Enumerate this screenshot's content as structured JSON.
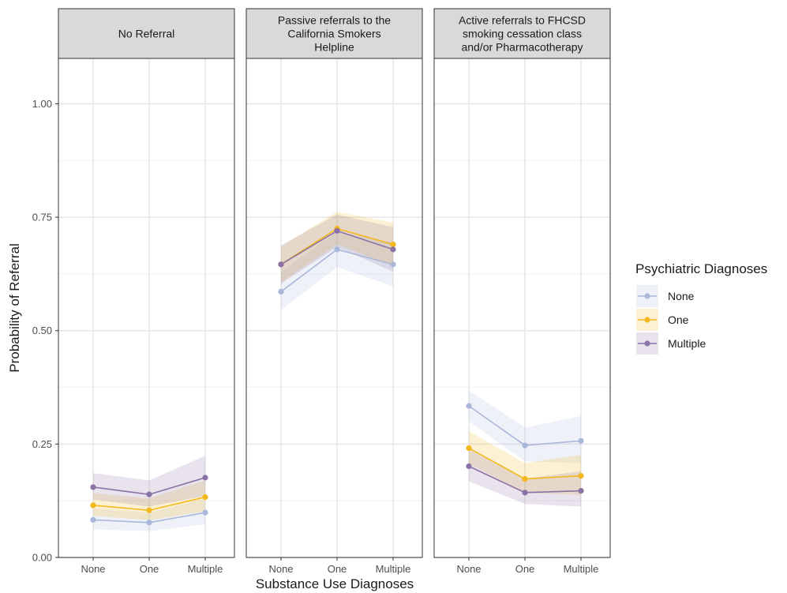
{
  "chart_data": {
    "type": "line",
    "xlabel": "Substance Use Diagnoses",
    "ylabel": "Probability of Referral",
    "ylim": [
      0,
      1.1
    ],
    "yticks": [
      "0.00",
      "0.25",
      "0.50",
      "0.75",
      "1.00"
    ],
    "ytick_values": [
      0,
      0.25,
      0.5,
      0.75,
      1.0
    ],
    "categories": [
      "None",
      "One",
      "Multiple"
    ],
    "grid": true,
    "legend": {
      "title": "Psychiatric Diagnoses",
      "position": "right",
      "entries": [
        "None",
        "One",
        "Multiple"
      ]
    },
    "colors": {
      "None": "#a9b8d9",
      "One": "#f2b81d",
      "Multiple": "#8c73a6"
    },
    "panels": [
      {
        "title_lines": [
          "No Referral"
        ],
        "series": [
          {
            "name": "None",
            "values": [
              0.083,
              0.077,
              0.099
            ],
            "lower": [
              0.062,
              0.058,
              0.073
            ],
            "upper": [
              0.108,
              0.099,
              0.13
            ]
          },
          {
            "name": "One",
            "values": [
              0.115,
              0.104,
              0.133
            ],
            "lower": [
              0.092,
              0.082,
              0.102
            ],
            "upper": [
              0.142,
              0.13,
              0.17
            ]
          },
          {
            "name": "Multiple",
            "values": [
              0.155,
              0.139,
              0.176
            ],
            "lower": [
              0.128,
              0.112,
              0.136
            ],
            "upper": [
              0.186,
              0.17,
              0.224
            ]
          }
        ]
      },
      {
        "title_lines": [
          "Passive referrals to the",
          "California Smokers",
          "Helpline"
        ],
        "series": [
          {
            "name": "None",
            "values": [
              0.586,
              0.679,
              0.646
            ],
            "lower": [
              0.545,
              0.64,
              0.598
            ],
            "upper": [
              0.63,
              0.718,
              0.694
            ]
          },
          {
            "name": "One",
            "values": [
              0.646,
              0.725,
              0.69
            ],
            "lower": [
              0.606,
              0.69,
              0.642
            ],
            "upper": [
              0.686,
              0.762,
              0.738
            ]
          },
          {
            "name": "Multiple",
            "values": [
              0.646,
              0.72,
              0.679
            ],
            "lower": [
              0.604,
              0.684,
              0.63
            ],
            "upper": [
              0.688,
              0.756,
              0.728
            ]
          }
        ]
      },
      {
        "title_lines": [
          "Active referrals to FHCSD",
          "smoking cessation class",
          "and/or Pharmacotherapy"
        ],
        "series": [
          {
            "name": "None",
            "values": [
              0.334,
              0.247,
              0.257
            ],
            "lower": [
              0.3,
              0.212,
              0.208
            ],
            "upper": [
              0.368,
              0.286,
              0.312
            ]
          },
          {
            "name": "One",
            "values": [
              0.241,
              0.173,
              0.18
            ],
            "lower": [
              0.207,
              0.142,
              0.138
            ],
            "upper": [
              0.278,
              0.208,
              0.226
            ]
          },
          {
            "name": "Multiple",
            "values": [
              0.201,
              0.143,
              0.147
            ],
            "lower": [
              0.168,
              0.118,
              0.112
            ],
            "upper": [
              0.238,
              0.174,
              0.19
            ]
          }
        ]
      }
    ]
  }
}
